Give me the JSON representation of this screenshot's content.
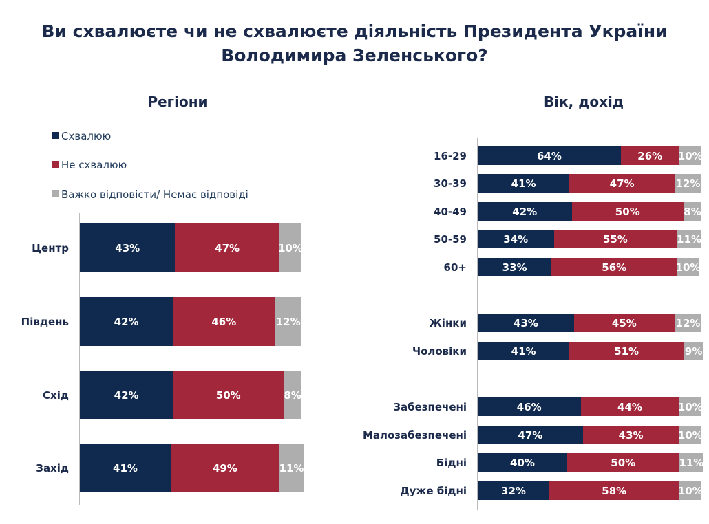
{
  "title_line1": "Ви схвалюєте чи не схвалюєте діяльність Президента України",
  "title_line2": "Володимира Зеленського?",
  "colors": {
    "approve": "#0f2a4e",
    "disapprove": "#a3273b",
    "hard": "#aeaeae"
  },
  "legend": [
    "Схвалюю",
    "Не схвалюю",
    "Важко відповісти/ Немає відповіді"
  ],
  "chart_data": [
    {
      "type": "bar",
      "stacked": true,
      "orientation": "horizontal",
      "title": "Регіони",
      "categories": [
        "Центр",
        "Південь",
        "Схід",
        "Захід"
      ],
      "series": [
        {
          "name": "Схвалюю",
          "values": [
            43,
            42,
            42,
            41
          ]
        },
        {
          "name": "Не схвалюю",
          "values": [
            47,
            46,
            50,
            49
          ]
        },
        {
          "name": "Важко відповісти/ Немає відповіді",
          "values": [
            10,
            12,
            8,
            11
          ]
        }
      ],
      "legend_position": "top-left"
    },
    {
      "type": "bar",
      "stacked": true,
      "orientation": "horizontal",
      "title": "Вік, дохід",
      "categories": [
        "16-29",
        "30-39",
        "40-49",
        "50-59",
        "60+",
        "Жінки",
        "Чоловіки",
        "Забезпечені",
        "Малозабезпечені",
        "Бідні",
        "Дуже бідні"
      ],
      "series": [
        {
          "name": "Схвалюю",
          "values": [
            64,
            41,
            42,
            34,
            33,
            43,
            41,
            46,
            47,
            40,
            32
          ]
        },
        {
          "name": "Не схвалюю",
          "values": [
            26,
            47,
            50,
            55,
            56,
            45,
            51,
            44,
            43,
            50,
            58
          ]
        },
        {
          "name": "Важко відповісти/ Немає відповіді",
          "values": [
            10,
            12,
            8,
            11,
            10,
            12,
            9,
            10,
            10,
            11,
            10
          ]
        }
      ]
    }
  ]
}
